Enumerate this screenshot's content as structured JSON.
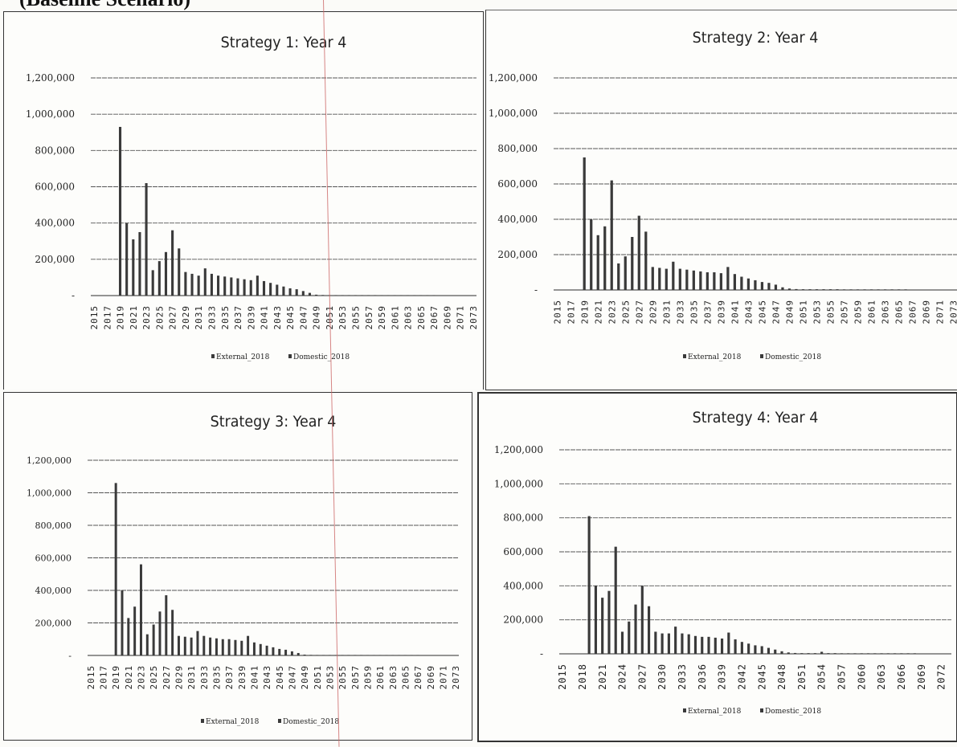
{
  "page": {
    "heading": "(Baseline Scenario)"
  },
  "axis_years": {
    "panels_1_2_3": [
      "2015",
      "2017",
      "2019",
      "2021",
      "2023",
      "2025",
      "2027",
      "2029",
      "2031",
      "2033",
      "2035",
      "2037",
      "2039",
      "2041",
      "2043",
      "2045",
      "2047",
      "2049",
      "2051",
      "2053",
      "2055",
      "2057",
      "2059",
      "2061",
      "2063",
      "2065",
      "2067",
      "2069",
      "2071",
      "2073"
    ],
    "panel_4": [
      "2015",
      "2018",
      "2021",
      "2024",
      "2027",
      "2030",
      "2033",
      "2036",
      "2039",
      "2042",
      "2045",
      "2048",
      "2051",
      "2054",
      "2057",
      "2060",
      "2063",
      "2066",
      "2069",
      "2072"
    ]
  },
  "y_ticks": [
    "-",
    "200,000",
    "400,000",
    "600,000",
    "800,000",
    "1,000,000",
    "1,200,000"
  ],
  "colors": {
    "bar": "#3a3a3a",
    "grid": "#555555",
    "text": "#222222"
  },
  "chart_data": [
    {
      "type": "bar",
      "title": "Strategy 1: Year 4",
      "xlabel": "",
      "ylabel": "",
      "ylim": [
        0,
        1200000
      ],
      "legend": [
        "External_2018",
        "Domestic_2018"
      ],
      "legend_placement": "bottom",
      "grid": true,
      "x": [
        2015,
        2016,
        2017,
        2018,
        2019,
        2020,
        2021,
        2022,
        2023,
        2024,
        2025,
        2026,
        2027,
        2028,
        2029,
        2030,
        2031,
        2032,
        2033,
        2034,
        2035,
        2036,
        2037,
        2038,
        2039,
        2040,
        2041,
        2042,
        2043,
        2044,
        2045,
        2046,
        2047,
        2048,
        2049,
        2050,
        2051,
        2052,
        2053,
        2054,
        2055,
        2056,
        2057,
        2058,
        2059,
        2060,
        2061,
        2062,
        2063,
        2064,
        2065,
        2066,
        2067,
        2068,
        2069,
        2070,
        2071,
        2072,
        2073
      ],
      "values": [
        0,
        0,
        0,
        0,
        930000,
        400000,
        310000,
        350000,
        620000,
        140000,
        190000,
        240000,
        360000,
        260000,
        130000,
        120000,
        110000,
        150000,
        120000,
        110000,
        105000,
        100000,
        95000,
        90000,
        85000,
        110000,
        80000,
        70000,
        60000,
        50000,
        40000,
        35000,
        25000,
        15000,
        5000,
        3000,
        2000,
        2000,
        2000,
        2000,
        2000,
        2000,
        2000,
        2000,
        1000,
        1000,
        1000,
        1000,
        1000,
        1000,
        1000,
        1000,
        1000,
        0,
        0,
        0,
        0,
        0,
        0
      ]
    },
    {
      "type": "bar",
      "title": "Strategy 2: Year 4",
      "xlabel": "",
      "ylabel": "",
      "ylim": [
        0,
        1200000
      ],
      "legend": [
        "External_2018",
        "Domestic_2018"
      ],
      "legend_placement": "bottom",
      "grid": true,
      "x": [
        2015,
        2016,
        2017,
        2018,
        2019,
        2020,
        2021,
        2022,
        2023,
        2024,
        2025,
        2026,
        2027,
        2028,
        2029,
        2030,
        2031,
        2032,
        2033,
        2034,
        2035,
        2036,
        2037,
        2038,
        2039,
        2040,
        2041,
        2042,
        2043,
        2044,
        2045,
        2046,
        2047,
        2048,
        2049,
        2050,
        2051,
        2052,
        2053,
        2054,
        2055,
        2056,
        2057,
        2058,
        2059,
        2060,
        2061,
        2062,
        2063,
        2064,
        2065,
        2066,
        2067,
        2068,
        2069,
        2070,
        2071,
        2072,
        2073
      ],
      "values": [
        0,
        0,
        0,
        0,
        750000,
        400000,
        310000,
        360000,
        620000,
        150000,
        190000,
        300000,
        420000,
        330000,
        130000,
        125000,
        120000,
        160000,
        120000,
        115000,
        110000,
        105000,
        100000,
        100000,
        95000,
        130000,
        90000,
        75000,
        65000,
        55000,
        45000,
        40000,
        30000,
        15000,
        8000,
        5000,
        4000,
        4000,
        4000,
        4000,
        4000,
        4000,
        3000,
        3000,
        3000,
        3000,
        3000,
        3000,
        3000,
        3000,
        3000,
        3000,
        0,
        0,
        0,
        0,
        0,
        0,
        0
      ]
    },
    {
      "type": "bar",
      "title": "Strategy 3: Year 4",
      "xlabel": "",
      "ylabel": "",
      "ylim": [
        0,
        1200000
      ],
      "legend": [
        "External_2018",
        "Domestic_2018"
      ],
      "legend_placement": "bottom",
      "grid": true,
      "x": [
        2015,
        2016,
        2017,
        2018,
        2019,
        2020,
        2021,
        2022,
        2023,
        2024,
        2025,
        2026,
        2027,
        2028,
        2029,
        2030,
        2031,
        2032,
        2033,
        2034,
        2035,
        2036,
        2037,
        2038,
        2039,
        2040,
        2041,
        2042,
        2043,
        2044,
        2045,
        2046,
        2047,
        2048,
        2049,
        2050,
        2051,
        2052,
        2053,
        2054,
        2055,
        2056,
        2057,
        2058,
        2059,
        2060,
        2061,
        2062,
        2063,
        2064,
        2065,
        2066,
        2067,
        2068,
        2069,
        2070,
        2071,
        2072,
        2073
      ],
      "values": [
        0,
        0,
        0,
        0,
        1060000,
        400000,
        230000,
        300000,
        560000,
        130000,
        190000,
        270000,
        370000,
        280000,
        120000,
        115000,
        110000,
        150000,
        120000,
        110000,
        105000,
        100000,
        100000,
        95000,
        90000,
        120000,
        80000,
        70000,
        60000,
        50000,
        40000,
        35000,
        25000,
        15000,
        5000,
        3000,
        2000,
        2000,
        2000,
        2000,
        2000,
        2000,
        2000,
        2000,
        1000,
        1000,
        1000,
        1000,
        1000,
        1000,
        1000,
        1000,
        1000,
        0,
        0,
        0,
        0,
        0,
        0
      ]
    },
    {
      "type": "bar",
      "title": "Strategy 4: Year 4",
      "xlabel": "",
      "ylabel": "",
      "ylim": [
        0,
        1200000
      ],
      "legend": [
        "External_2018",
        "Domestic_2018"
      ],
      "legend_placement": "bottom",
      "grid": true,
      "x": [
        2015,
        2016,
        2017,
        2018,
        2019,
        2020,
        2021,
        2022,
        2023,
        2024,
        2025,
        2026,
        2027,
        2028,
        2029,
        2030,
        2031,
        2032,
        2033,
        2034,
        2035,
        2036,
        2037,
        2038,
        2039,
        2040,
        2041,
        2042,
        2043,
        2044,
        2045,
        2046,
        2047,
        2048,
        2049,
        2050,
        2051,
        2052,
        2053,
        2054,
        2055,
        2056,
        2057,
        2058,
        2059,
        2060,
        2061,
        2062,
        2063,
        2064,
        2065,
        2066,
        2067,
        2068,
        2069,
        2070,
        2071,
        2072,
        2073
      ],
      "values": [
        0,
        0,
        0,
        0,
        810000,
        400000,
        330000,
        370000,
        630000,
        130000,
        190000,
        290000,
        400000,
        280000,
        130000,
        120000,
        120000,
        160000,
        120000,
        115000,
        105000,
        100000,
        100000,
        95000,
        90000,
        125000,
        85000,
        70000,
        60000,
        50000,
        45000,
        35000,
        25000,
        15000,
        8000,
        5000,
        4000,
        4000,
        4000,
        12000,
        4000,
        4000,
        3000,
        3000,
        3000,
        3000,
        3000,
        3000,
        3000,
        3000,
        3000,
        3000,
        3000,
        3000,
        0,
        0,
        0,
        0,
        0
      ]
    }
  ]
}
